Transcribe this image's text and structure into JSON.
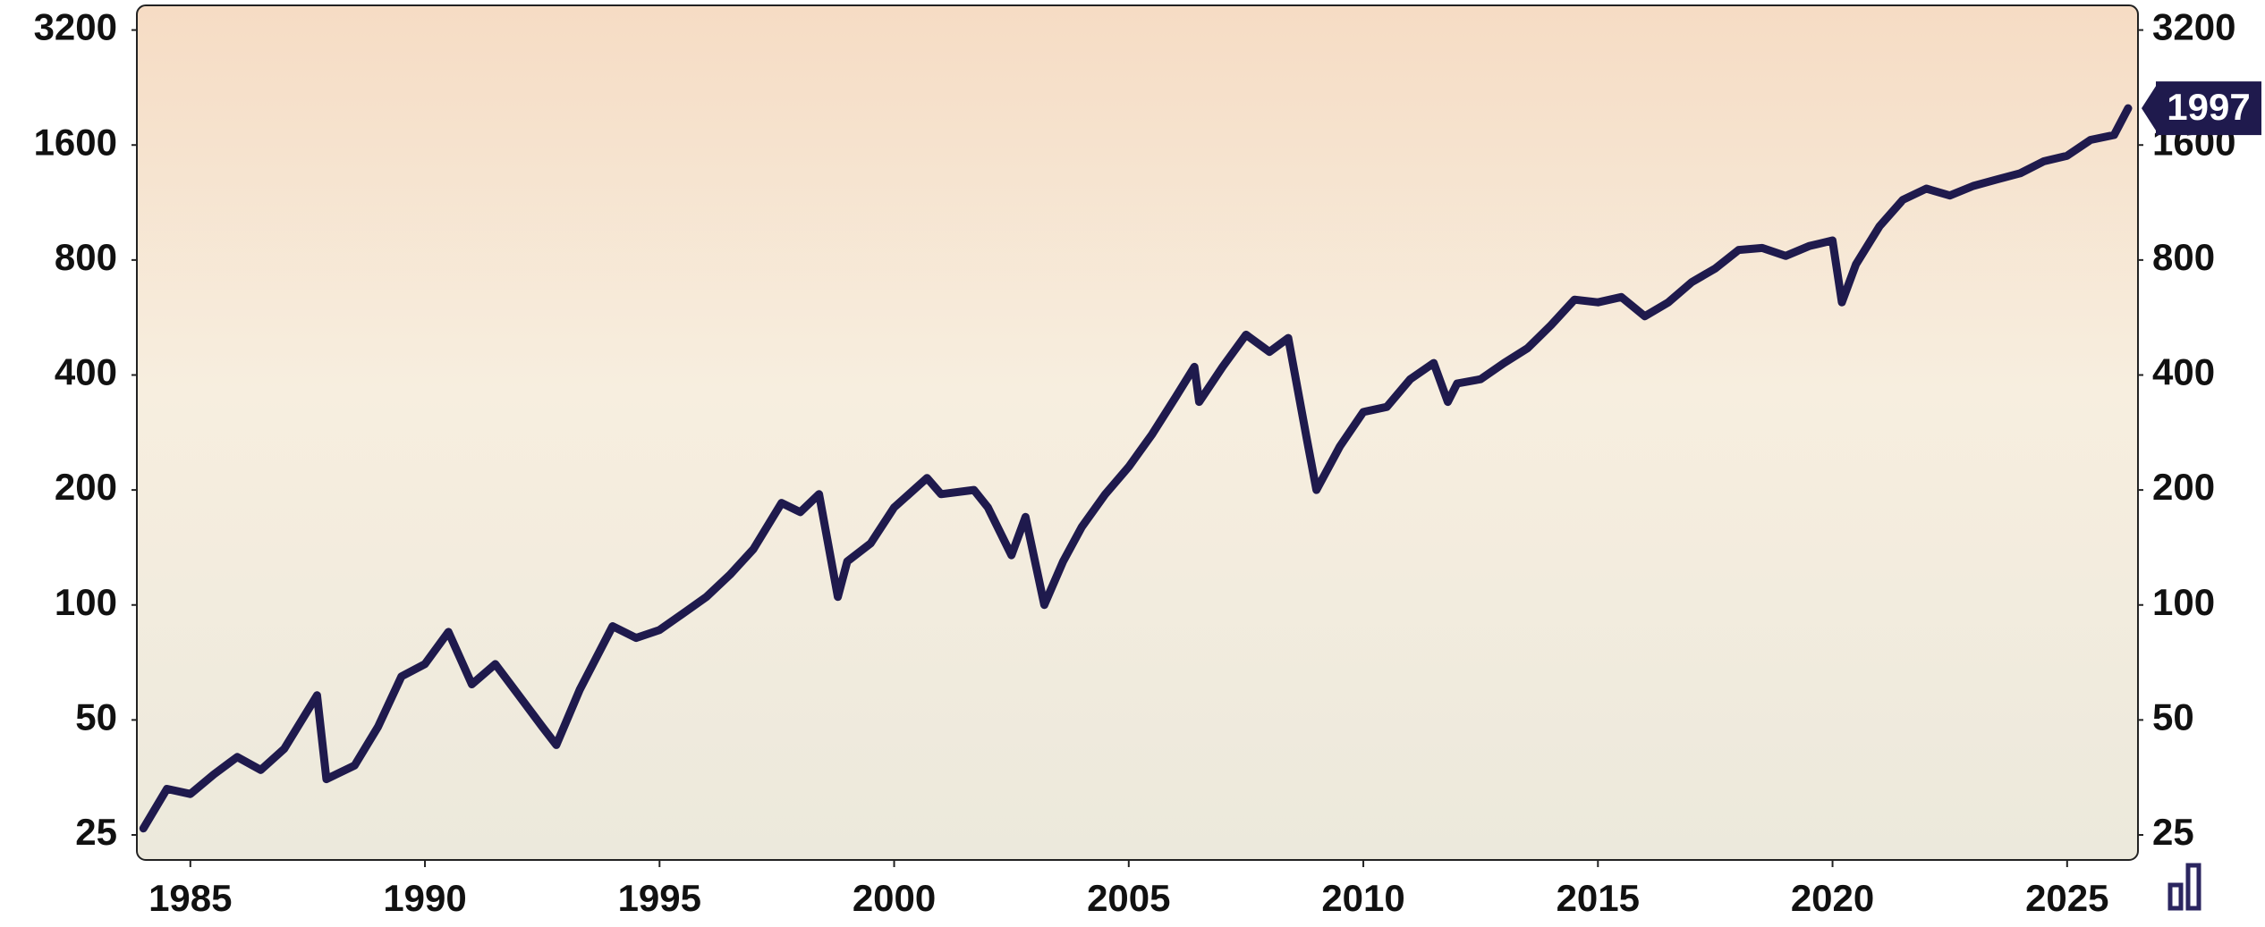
{
  "chart_data": {
    "type": "line",
    "x": [
      1984.0,
      1984.5,
      1985.0,
      1985.5,
      1986.0,
      1986.5,
      1987.0,
      1987.7,
      1987.9,
      1988.5,
      1989.0,
      1989.5,
      1990.0,
      1990.5,
      1991.0,
      1991.5,
      1992.0,
      1992.5,
      1992.8,
      1993.3,
      1994.0,
      1994.5,
      1995.0,
      1995.5,
      1996.0,
      1996.5,
      1997.0,
      1997.6,
      1998.0,
      1998.4,
      1998.8,
      1999.0,
      1999.5,
      2000.0,
      2000.7,
      2001.0,
      2001.7,
      2002.0,
      2002.5,
      2002.8,
      2003.2,
      2003.6,
      2004.0,
      2004.5,
      2005.0,
      2005.5,
      2006.0,
      2006.4,
      2006.5,
      2007.0,
      2007.5,
      2008.0,
      2008.4,
      2008.8,
      2009.0,
      2009.5,
      2010.0,
      2010.5,
      2011.0,
      2011.5,
      2011.8,
      2012.0,
      2012.5,
      2013.0,
      2013.5,
      2014.0,
      2014.5,
      2015.0,
      2015.5,
      2016.0,
      2016.5,
      2017.0,
      2017.5,
      2018.0,
      2018.5,
      2019.0,
      2019.5,
      2020.0,
      2020.2,
      2020.5,
      2021.0,
      2021.5,
      2022.0,
      2022.5,
      2023.0,
      2023.5,
      2024.0,
      2024.5,
      2025.0,
      2025.5,
      2026.0,
      2026.3
    ],
    "values": [
      26,
      33,
      32,
      36,
      40,
      37,
      42,
      58,
      35,
      38,
      48,
      65,
      70,
      85,
      62,
      70,
      58,
      48,
      43,
      60,
      88,
      82,
      86,
      95,
      105,
      120,
      140,
      185,
      175,
      195,
      105,
      130,
      145,
      180,
      215,
      195,
      200,
      180,
      135,
      170,
      100,
      130,
      160,
      195,
      230,
      280,
      350,
      420,
      340,
      420,
      510,
      460,
      500,
      270,
      200,
      260,
      320,
      330,
      390,
      430,
      340,
      380,
      390,
      430,
      470,
      540,
      630,
      620,
      640,
      570,
      620,
      700,
      760,
      850,
      860,
      820,
      870,
      900,
      620,
      780,
      980,
      1150,
      1230,
      1180,
      1250,
      1300,
      1350,
      1450,
      1500,
      1650,
      1700,
      1997
    ],
    "color": "#1f1a4d",
    "log_scale": true,
    "xlim": [
      1983.86,
      2026.51
    ],
    "xticks": [
      1985,
      1990,
      1995,
      2000,
      2005,
      2010,
      2015,
      2020,
      2025
    ],
    "ylim": [
      21.5,
      3713
    ],
    "yticks": [
      25,
      50,
      100,
      200,
      400,
      800,
      1600,
      3200
    ]
  }
}
